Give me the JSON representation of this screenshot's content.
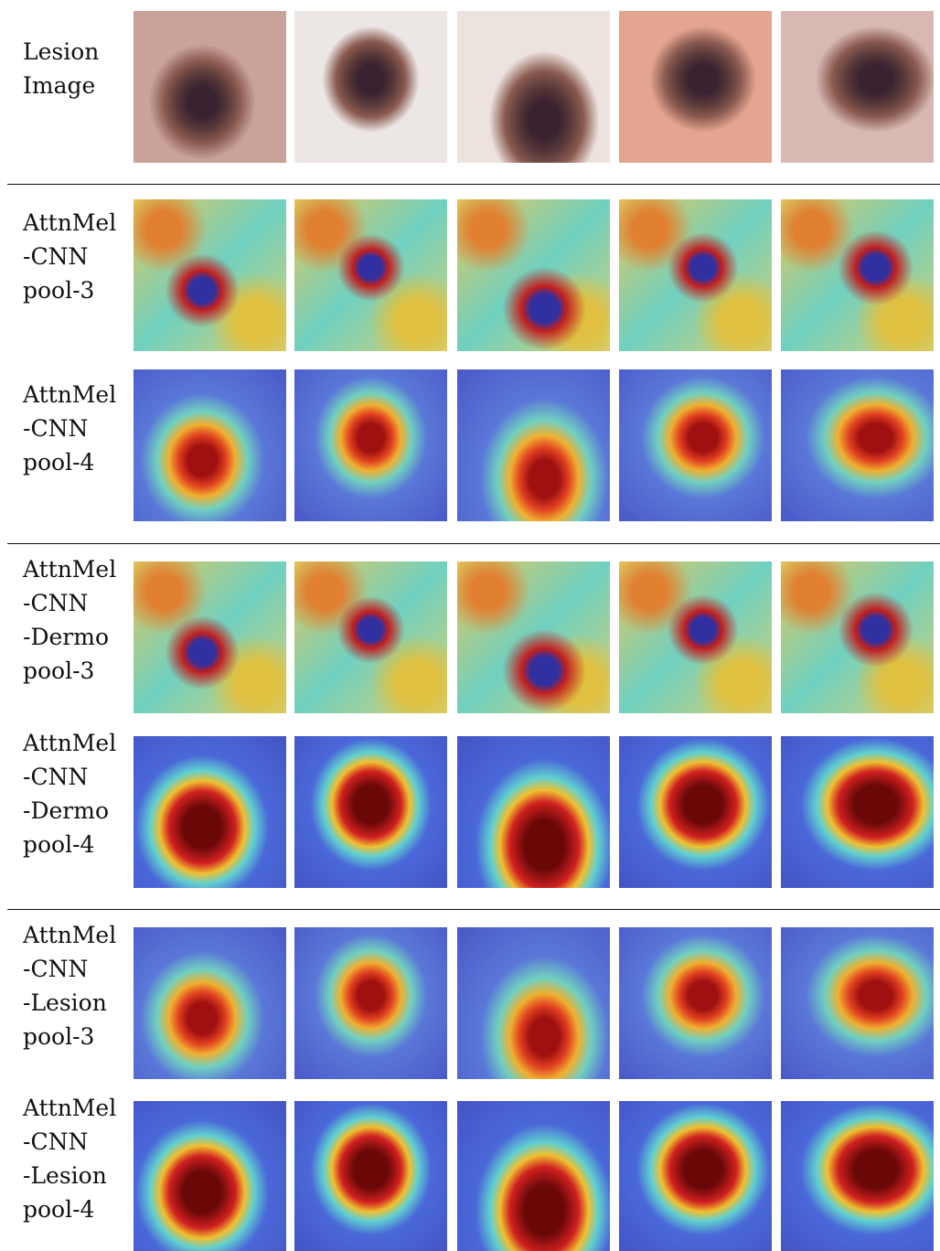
{
  "rows": [
    {
      "label": [
        "Lesion",
        "Image"
      ]
    },
    {
      "label": [
        "AttnMel",
        "-CNN",
        "pool-3"
      ]
    },
    {
      "label": [
        "AttnMel",
        "-CNN",
        "pool-4"
      ]
    },
    {
      "label": [
        "AttnMel",
        "-CNN",
        "-Dermo",
        "pool-3"
      ]
    },
    {
      "label": [
        "AttnMel",
        "-CNN",
        "-Dermo",
        "pool-4"
      ]
    },
    {
      "label": [
        "AttnMel",
        "-CNN",
        "-Lesion",
        "pool-3"
      ]
    },
    {
      "label": [
        "AttnMel",
        "-CNN",
        "-Lesion",
        "pool-4"
      ]
    }
  ]
}
